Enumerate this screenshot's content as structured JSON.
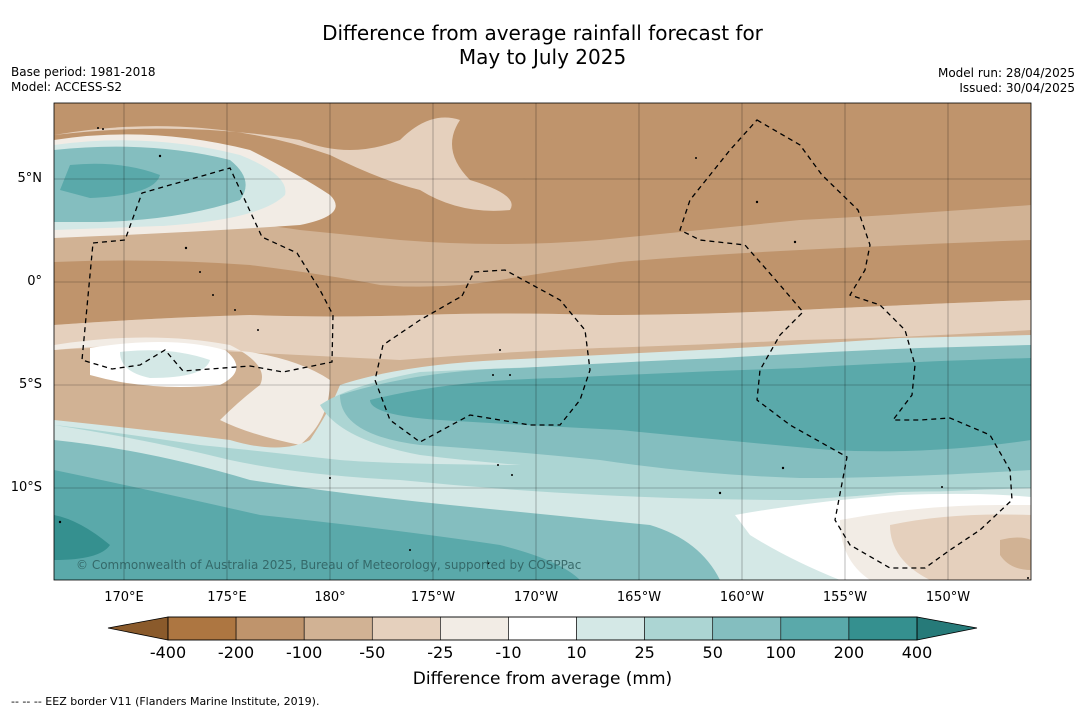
{
  "title_line1": "Difference from average rainfall forecast for",
  "title_line2": "May to July 2025",
  "base_period": "Base period: 1981-2018",
  "model": "Model: ACCESS-S2",
  "model_run": "Model run: 28/04/2025",
  "issued": "Issued: 30/04/2025",
  "copyright": "© Commonwealth of Australia 2025, Bureau of Meteorology, supported by COSPPac",
  "lat_labels": [
    "5°N",
    "0°",
    "5°S",
    "10°S"
  ],
  "lon_labels": [
    "170°E",
    "175°E",
    "180°",
    "175°W",
    "170°W",
    "165°W",
    "160°W",
    "155°W",
    "150°W"
  ],
  "colorbar": {
    "title": "Difference from average (mm)",
    "labels": [
      "-400",
      "-200",
      "-100",
      "-50",
      "-25",
      "-10",
      "10",
      "25",
      "50",
      "100",
      "200",
      "400"
    ],
    "colors": [
      "#8a5a2b",
      "#ad7641",
      "#bf946c",
      "#d1b294",
      "#e5d0bd",
      "#f2ece5",
      "#ffffff",
      "#d4e8e6",
      "#acd5d3",
      "#84bebf",
      "#5aa9aa",
      "#35908f",
      "#267a79"
    ]
  },
  "footnote": "--  --  -- EEZ border V11 (Flanders Marine Institute, 2019)."
}
